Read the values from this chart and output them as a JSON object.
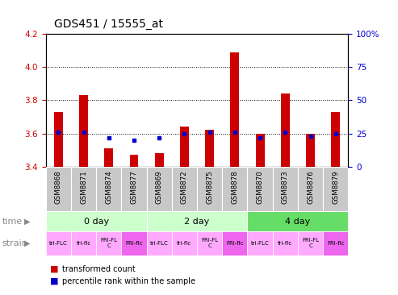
{
  "title": "GDS451 / 15555_at",
  "samples": [
    "GSM8868",
    "GSM8871",
    "GSM8874",
    "GSM8877",
    "GSM8869",
    "GSM8872",
    "GSM8875",
    "GSM8878",
    "GSM8870",
    "GSM8873",
    "GSM8876",
    "GSM8879"
  ],
  "transformed_counts": [
    3.73,
    3.83,
    3.51,
    3.47,
    3.48,
    3.64,
    3.62,
    4.09,
    3.6,
    3.84,
    3.6,
    3.73
  ],
  "percentile_ranks": [
    26,
    26,
    22,
    20,
    22,
    25,
    26,
    26,
    22,
    26,
    23,
    25
  ],
  "ylim": [
    3.4,
    4.2
  ],
  "yticks": [
    3.4,
    3.6,
    3.8,
    4.0,
    4.2
  ],
  "y2lim": [
    0,
    100
  ],
  "y2ticks": [
    0,
    25,
    50,
    75,
    100
  ],
  "y2ticklabels": [
    "0",
    "25",
    "50",
    "75",
    "100%"
  ],
  "time_groups": [
    {
      "label": "0 day",
      "start": 0,
      "end": 4,
      "color": "#ccffcc"
    },
    {
      "label": "2 day",
      "start": 4,
      "end": 8,
      "color": "#ccffcc"
    },
    {
      "label": "4 day",
      "start": 8,
      "end": 12,
      "color": "#66dd66"
    }
  ],
  "strain_labels": [
    "tri-FLC",
    "fri-flc",
    "FRI-FL\nC",
    "FRI-flc",
    "tri-FLC",
    "fri-flc",
    "FRI-FL\nC",
    "FRI-flc",
    "tri-FLC",
    "fri-flc",
    "FRI-FL\nC",
    "FRI-flc"
  ],
  "strain_colors": [
    "#ffaaff",
    "#ffaaff",
    "#ffaaff",
    "#ee66ee",
    "#ffaaff",
    "#ffaaff",
    "#ffaaff",
    "#ee66ee",
    "#ffaaff",
    "#ffaaff",
    "#ffaaff",
    "#ee66ee"
  ],
  "bar_color": "#cc0000",
  "dot_color": "#0000cc",
  "bar_width": 0.35,
  "sample_bg": "#c8c8c8",
  "ylabel_color": "#cc0000",
  "y2label_color": "#0000cc",
  "tick_fontsize": 7.5,
  "title_fontsize": 10,
  "grid_dotted_vals": [
    3.6,
    3.8,
    4.0
  ]
}
